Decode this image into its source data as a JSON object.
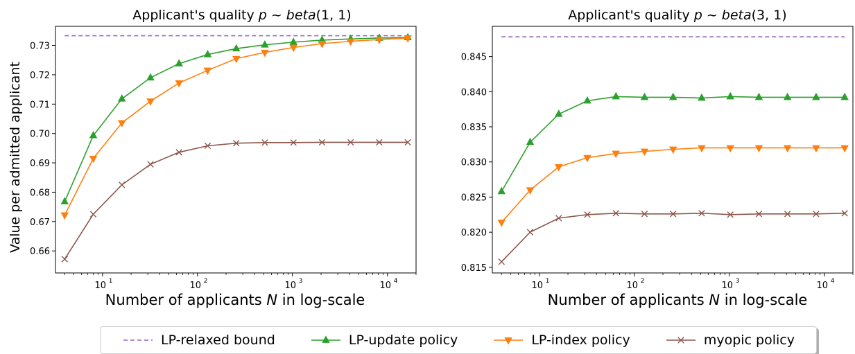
{
  "chart_data": [
    {
      "type": "line",
      "title_prefix": "Applicant's quality ",
      "title_math": "p",
      "title_dist": "beta",
      "title_params": "(1, 1)",
      "xlabel_prefix": "Number of applicants ",
      "xlabel_math": "N",
      "xlabel_suffix": " in log-scale",
      "ylabel": "Value per admitted applicant",
      "xscale": "log",
      "xlim": [
        3.2,
        20000
      ],
      "ylim": [
        0.6525,
        0.7365
      ],
      "yticks": [
        0.66,
        0.67,
        0.68,
        0.69,
        0.7,
        0.71,
        0.72,
        0.73
      ],
      "ytick_labels": [
        "0.66",
        "0.67",
        "0.68",
        "0.69",
        "0.70",
        "0.71",
        "0.72",
        "0.73"
      ],
      "xticks": [
        10,
        100,
        1000,
        10000
      ],
      "xtick_labels_base": [
        "10",
        "10",
        "10",
        "10"
      ],
      "xtick_labels_exp": [
        "1",
        "2",
        "3",
        "4"
      ],
      "x": [
        4,
        8,
        16,
        32,
        64,
        128,
        256,
        512,
        1024,
        2048,
        4096,
        8192,
        16384
      ],
      "series": [
        {
          "name": "LP-relaxed bound",
          "key": "bound",
          "y": [
            0.7333,
            0.7333,
            0.7333,
            0.7333,
            0.7333,
            0.7333,
            0.7333,
            0.7333,
            0.7333,
            0.7333,
            0.7333,
            0.7333,
            0.7333
          ]
        },
        {
          "name": "LP-update policy",
          "key": "update",
          "y": [
            0.6768,
            0.6993,
            0.7118,
            0.719,
            0.7238,
            0.7269,
            0.7289,
            0.7302,
            0.7311,
            0.7318,
            0.7322,
            0.7325,
            0.7327
          ]
        },
        {
          "name": "LP-index policy",
          "key": "index",
          "y": [
            0.6722,
            0.6915,
            0.7036,
            0.711,
            0.7172,
            0.7215,
            0.7255,
            0.7276,
            0.7293,
            0.7306,
            0.7314,
            0.732,
            0.7325
          ]
        },
        {
          "name": "myopic policy",
          "key": "myopic",
          "y": [
            0.6572,
            0.6725,
            0.6825,
            0.6895,
            0.6936,
            0.6958,
            0.6967,
            0.6969,
            0.6969,
            0.697,
            0.697,
            0.697,
            0.697
          ]
        }
      ]
    },
    {
      "type": "line",
      "title_prefix": "Applicant's quality ",
      "title_math": "p",
      "title_dist": "beta",
      "title_params": "(3, 1)",
      "xlabel_prefix": "Number of applicants ",
      "xlabel_math": "N",
      "xlabel_suffix": " in log-scale",
      "ylabel": "",
      "xscale": "log",
      "xlim": [
        3.2,
        20000
      ],
      "ylim": [
        0.8142,
        0.8493
      ],
      "yticks": [
        0.815,
        0.82,
        0.825,
        0.83,
        0.835,
        0.84,
        0.845
      ],
      "ytick_labels": [
        "0.815",
        "0.820",
        "0.825",
        "0.830",
        "0.835",
        "0.840",
        "0.845"
      ],
      "xticks": [
        10,
        100,
        1000,
        10000
      ],
      "xtick_labels_base": [
        "10",
        "10",
        "10",
        "10"
      ],
      "xtick_labels_exp": [
        "1",
        "2",
        "3",
        "4"
      ],
      "x": [
        4,
        8,
        16,
        32,
        64,
        128,
        256,
        512,
        1024,
        2048,
        4096,
        8192,
        16384
      ],
      "series": [
        {
          "name": "LP-relaxed bound",
          "key": "bound",
          "y": [
            0.8478,
            0.8478,
            0.8478,
            0.8478,
            0.8478,
            0.8478,
            0.8478,
            0.8478,
            0.8478,
            0.8478,
            0.8478,
            0.8478,
            0.8478
          ]
        },
        {
          "name": "LP-update policy",
          "key": "update",
          "y": [
            0.8258,
            0.8328,
            0.8368,
            0.8387,
            0.8393,
            0.8392,
            0.8392,
            0.8391,
            0.8393,
            0.8392,
            0.8392,
            0.8392,
            0.8392
          ]
        },
        {
          "name": "LP-index policy",
          "key": "index",
          "y": [
            0.8214,
            0.826,
            0.8293,
            0.8306,
            0.8312,
            0.8315,
            0.8318,
            0.832,
            0.832,
            0.832,
            0.832,
            0.832,
            0.832
          ]
        },
        {
          "name": "myopic policy",
          "key": "myopic",
          "y": [
            0.8158,
            0.82,
            0.822,
            0.8225,
            0.8227,
            0.8226,
            0.8226,
            0.8227,
            0.8225,
            0.8226,
            0.8226,
            0.8226,
            0.8227
          ]
        }
      ]
    }
  ],
  "legend": {
    "placement": "bottom-center",
    "items": [
      {
        "key": "bound",
        "label": "LP-relaxed bound"
      },
      {
        "key": "update",
        "label": "LP-update policy"
      },
      {
        "key": "index",
        "label": "LP-index policy"
      },
      {
        "key": "myopic",
        "label": "myopic policy"
      }
    ]
  },
  "colors": {
    "bound": "#9467bd",
    "update": "#2ca02c",
    "index": "#ff7f0e",
    "myopic": "#8c564b",
    "axis": "#000000"
  },
  "markers": {
    "bound": "none",
    "update": "triangle-up",
    "index": "triangle-down",
    "myopic": "x"
  }
}
